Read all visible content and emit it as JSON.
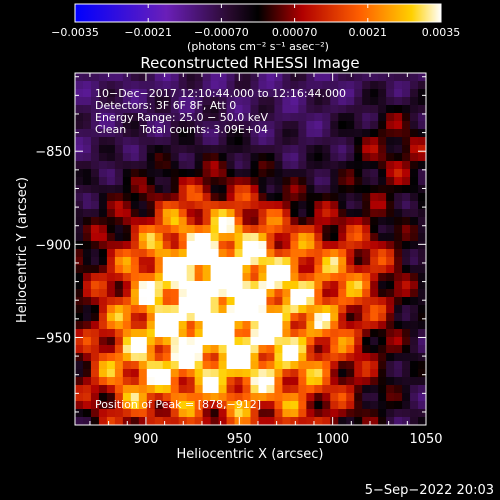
{
  "chart_data": {
    "type": "heatmap",
    "title": "Reconstructed RHESSI Image",
    "xlabel": "Heliocentric X (arcsec)",
    "ylabel": "Heliocentric Y (arcsec)",
    "xlim": [
      862,
      1050
    ],
    "ylim": [
      -997,
      -808
    ],
    "x_ticks": [
      900,
      950,
      1000,
      1050
    ],
    "y_ticks": [
      -850,
      -900,
      -950
    ],
    "colorbar": {
      "min": -0.0035,
      "max": 0.0035,
      "tick_values": [
        -0.0035,
        -0.0021,
        -0.0007,
        0.0007,
        0.0021,
        0.0035
      ],
      "tick_labels": [
        "−0.0035",
        "−0.0021",
        "−0.00070",
        "0.00070",
        "0.0021",
        "0.0035"
      ],
      "unit_label": "(photons cm⁻² s⁻¹ asec⁻²)"
    },
    "annotations": [
      "10−Dec−2017 12:10:44.000 to 12:16:44.000",
      "Detectors: 3F 6F 8F, Att 0",
      "Energy Range: 25.0 − 50.0 keV",
      "Clean    Total counts: 3.09E+04"
    ],
    "peak_label": "Position of Peak = [878,−912]",
    "peak": [
      878,
      -912
    ]
  },
  "footer_date": "5−Sep−2022 20:03",
  "colors": {
    "background": "#000000",
    "axes": "#ffffff",
    "text": "#ffffff"
  }
}
